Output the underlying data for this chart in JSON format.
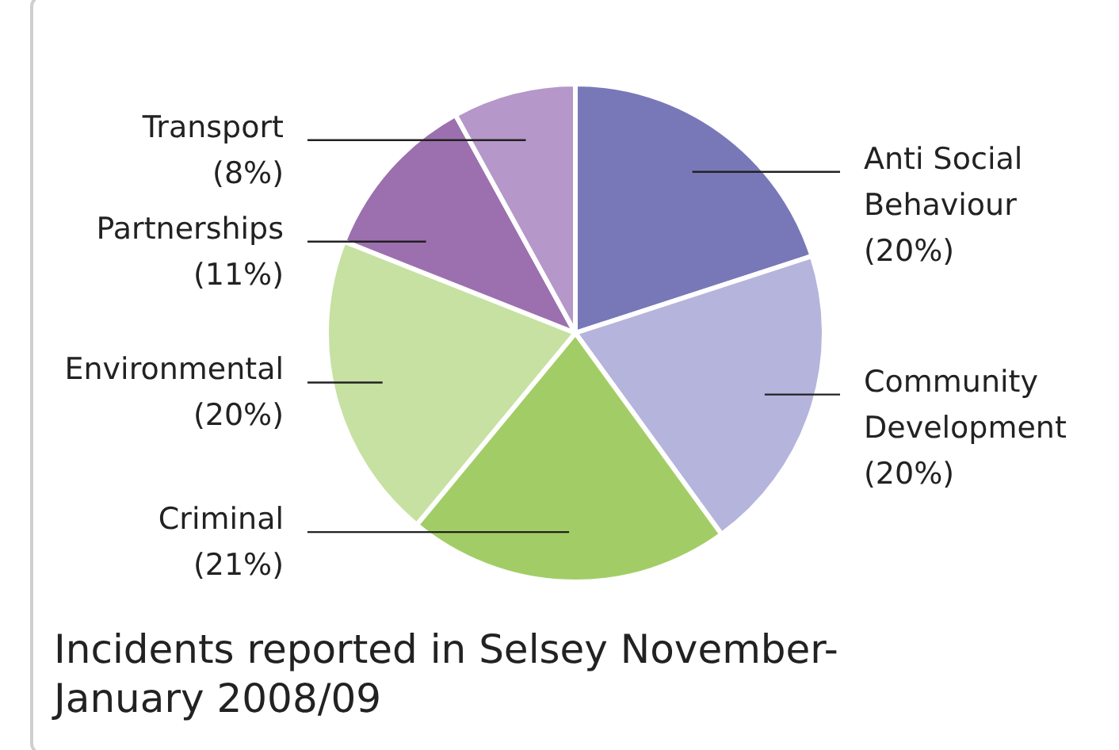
{
  "chart_data": {
    "type": "pie",
    "title": "Incidents reported in Selsey November-January 2008/09",
    "categories": [
      "Anti Social Behaviour",
      "Community Development",
      "Criminal",
      "Environmental",
      "Partnerships",
      "Transport"
    ],
    "values": [
      20,
      20,
      21,
      20,
      11,
      8
    ],
    "value_labels": [
      "(20%)",
      "(20%)",
      "(21%)",
      "(20%)",
      "(11%)",
      "(8%)"
    ],
    "colors": [
      "#7878b9",
      "#b4b4dc",
      "#a2cd66",
      "#c6e1a2",
      "#9c70ae",
      "#b597c9"
    ]
  }
}
